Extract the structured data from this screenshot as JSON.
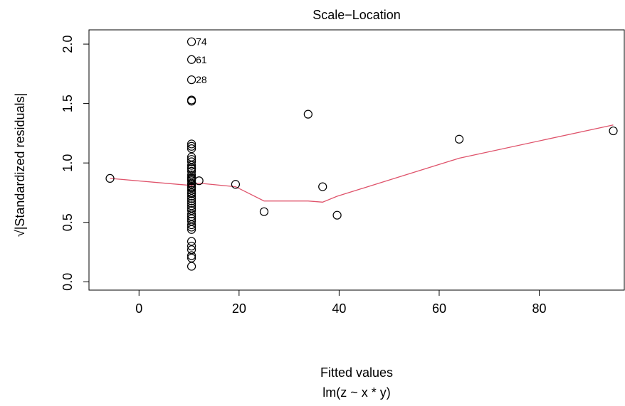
{
  "chart_data": {
    "type": "scatter",
    "title": "Scale−Location",
    "xlabel": "Fitted values",
    "xlabel2": "lm(z ~ x * y)",
    "ylabel": "√|Standardized residuals|",
    "xlim": [
      -10,
      97
    ],
    "ylim": [
      -0.07,
      2.12
    ],
    "xticks": [
      "0",
      "20",
      "40",
      "60",
      "80"
    ],
    "yticks": [
      "0.0",
      "0.5",
      "1.0",
      "1.5",
      "2.0"
    ],
    "grid": false,
    "series": [
      {
        "type": "points",
        "color": "#000000",
        "points": [
          {
            "x": 10.5,
            "y": 2.02,
            "label": "74"
          },
          {
            "x": 10.5,
            "y": 1.87,
            "label": "61"
          },
          {
            "x": 10.5,
            "y": 1.7,
            "label": "28"
          },
          {
            "x": 10.5,
            "y": 1.53
          },
          {
            "x": 10.5,
            "y": 1.52
          },
          {
            "x": 10.5,
            "y": 1.16
          },
          {
            "x": 10.5,
            "y": 1.14
          },
          {
            "x": 10.5,
            "y": 1.12
          },
          {
            "x": 10.5,
            "y": 1.05
          },
          {
            "x": 10.5,
            "y": 1.03
          },
          {
            "x": 10.5,
            "y": 1.01
          },
          {
            "x": 10.5,
            "y": 0.98
          },
          {
            "x": 10.5,
            "y": 0.96
          },
          {
            "x": 10.5,
            "y": 0.95
          },
          {
            "x": 10.5,
            "y": 0.93
          },
          {
            "x": 10.5,
            "y": 0.9
          },
          {
            "x": 10.5,
            "y": 0.88
          },
          {
            "x": 10.5,
            "y": 0.87
          },
          {
            "x": 10.5,
            "y": 0.86
          },
          {
            "x": 10.5,
            "y": 0.85
          },
          {
            "x": 10.5,
            "y": 0.83
          },
          {
            "x": 10.5,
            "y": 0.82
          },
          {
            "x": 10.5,
            "y": 0.8
          },
          {
            "x": 10.5,
            "y": 0.79
          },
          {
            "x": 10.5,
            "y": 0.77
          },
          {
            "x": 10.5,
            "y": 0.75
          },
          {
            "x": 10.5,
            "y": 0.74
          },
          {
            "x": 10.5,
            "y": 0.72
          },
          {
            "x": 10.5,
            "y": 0.7
          },
          {
            "x": 10.5,
            "y": 0.68
          },
          {
            "x": 10.5,
            "y": 0.66
          },
          {
            "x": 10.5,
            "y": 0.64
          },
          {
            "x": 10.5,
            "y": 0.62
          },
          {
            "x": 10.5,
            "y": 0.6
          },
          {
            "x": 10.5,
            "y": 0.57
          },
          {
            "x": 10.5,
            "y": 0.55
          },
          {
            "x": 10.5,
            "y": 0.53
          },
          {
            "x": 10.5,
            "y": 0.51
          },
          {
            "x": 10.5,
            "y": 0.48
          },
          {
            "x": 10.5,
            "y": 0.46
          },
          {
            "x": 10.5,
            "y": 0.44
          },
          {
            "x": 10.5,
            "y": 0.34
          },
          {
            "x": 10.5,
            "y": 0.3
          },
          {
            "x": 10.5,
            "y": 0.27
          },
          {
            "x": 10.5,
            "y": 0.22
          },
          {
            "x": 10.5,
            "y": 0.2
          },
          {
            "x": 10.5,
            "y": 0.13
          },
          {
            "x": -5.8,
            "y": 0.87
          },
          {
            "x": 12.0,
            "y": 0.85
          },
          {
            "x": 19.3,
            "y": 0.82
          },
          {
            "x": 25.0,
            "y": 0.59
          },
          {
            "x": 33.8,
            "y": 1.41
          },
          {
            "x": 36.7,
            "y": 0.8
          },
          {
            "x": 39.6,
            "y": 0.56
          },
          {
            "x": 64.0,
            "y": 1.2
          },
          {
            "x": 94.8,
            "y": 1.27
          }
        ]
      },
      {
        "type": "smooth-line",
        "color": "#DF536B",
        "points": [
          {
            "x": -5.8,
            "y": 0.87
          },
          {
            "x": 10.5,
            "y": 0.81
          },
          {
            "x": 12.0,
            "y": 0.83
          },
          {
            "x": 19.3,
            "y": 0.8
          },
          {
            "x": 25.0,
            "y": 0.68
          },
          {
            "x": 33.8,
            "y": 0.68
          },
          {
            "x": 36.7,
            "y": 0.67
          },
          {
            "x": 39.6,
            "y": 0.72
          },
          {
            "x": 64.0,
            "y": 1.04
          },
          {
            "x": 94.8,
            "y": 1.32
          }
        ]
      }
    ]
  }
}
